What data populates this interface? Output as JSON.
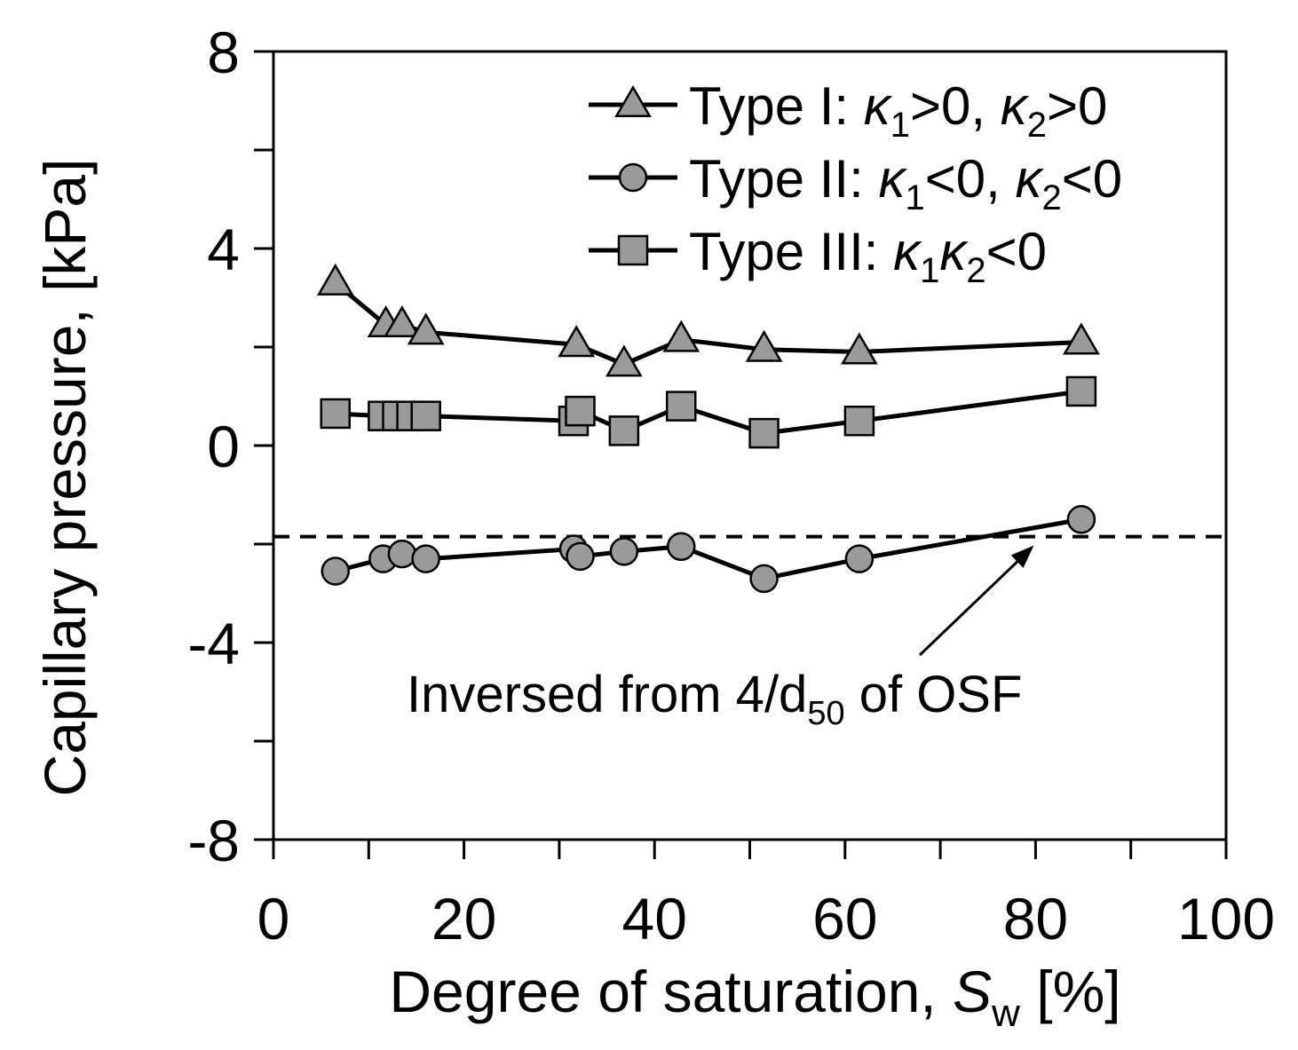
{
  "chart_data": {
    "type": "line",
    "xlabel": "Degree of saturation, ",
    "xlabel_var": "S",
    "xlabel_sub": "w",
    "xlabel_unit": " [%]",
    "ylabel": "Capillary pressure, [kPa]",
    "xlim": [
      0,
      100
    ],
    "ylim": [
      -8,
      8
    ],
    "x_ticks": [
      0,
      20,
      40,
      60,
      80,
      100
    ],
    "y_ticks": [
      -8,
      -4,
      0,
      4,
      8
    ],
    "x_tick_labels": [
      "0",
      "20",
      "40",
      "60",
      "80",
      "100"
    ],
    "y_tick_labels": [
      "-8",
      "-4",
      "0",
      "4",
      "8"
    ],
    "x_minor_ticks": [
      10,
      30,
      50,
      70,
      90
    ],
    "y_minor_ticks": [
      -6,
      -2,
      2,
      6
    ],
    "grid": false,
    "legend_position": "top-right",
    "series": [
      {
        "name": "Type I",
        "marker": "triangle",
        "label_main": "Type I: ",
        "label_parts": [
          {
            "t": "κ",
            "italic": true
          },
          {
            "t": "1",
            "sub": true
          },
          {
            "t": ">0, "
          },
          {
            "t": "κ",
            "italic": true
          },
          {
            "t": "2",
            "sub": true
          },
          {
            "t": ">0"
          }
        ],
        "x": [
          6.5,
          11.8,
          13.5,
          16.0,
          31.8,
          36.8,
          42.8,
          51.5,
          61.5,
          84.8
        ],
        "y": [
          3.3,
          2.45,
          2.45,
          2.3,
          2.05,
          1.65,
          2.15,
          1.95,
          1.9,
          2.1
        ]
      },
      {
        "name": "Type II",
        "marker": "circle",
        "label_main": "Type II: ",
        "label_parts": [
          {
            "t": "κ",
            "italic": true
          },
          {
            "t": "1",
            "sub": true
          },
          {
            "t": "<0, "
          },
          {
            "t": "κ",
            "italic": true
          },
          {
            "t": "2",
            "sub": true
          },
          {
            "t": "<0"
          }
        ],
        "x": [
          6.5,
          11.5,
          13.5,
          16.0,
          31.5,
          32.2,
          36.8,
          42.8,
          51.5,
          61.5,
          84.8
        ],
        "y": [
          -2.55,
          -2.3,
          -2.2,
          -2.3,
          -2.1,
          -2.25,
          -2.15,
          -2.05,
          -2.7,
          -2.3,
          -1.5
        ]
      },
      {
        "name": "Type III",
        "marker": "square",
        "label_main": "Type III: ",
        "label_parts": [
          {
            "t": "κ",
            "italic": true
          },
          {
            "t": "1",
            "sub": true
          },
          {
            "t": "κ",
            "italic": true
          },
          {
            "t": "2",
            "sub": true
          },
          {
            "t": "<0"
          }
        ],
        "x": [
          6.5,
          11.5,
          13.0,
          14.5,
          16.0,
          31.5,
          32.2,
          36.8,
          42.8,
          51.5,
          61.5,
          84.8
        ],
        "y": [
          0.65,
          0.6,
          0.6,
          0.6,
          0.6,
          0.5,
          0.7,
          0.3,
          0.8,
          0.25,
          0.5,
          1.1
        ]
      }
    ],
    "reference_line": {
      "y": -1.85,
      "style": "dashed"
    },
    "annotation": {
      "text_main": "Inversed from 4/d",
      "text_sub": "50",
      "text_tail": " of OSF",
      "arrow_to_x": 80,
      "arrow_to_y": -1.85
    }
  },
  "colors": {
    "marker_fill": "#9a9a9a",
    "line": "#000000",
    "background": "#ffffff"
  }
}
